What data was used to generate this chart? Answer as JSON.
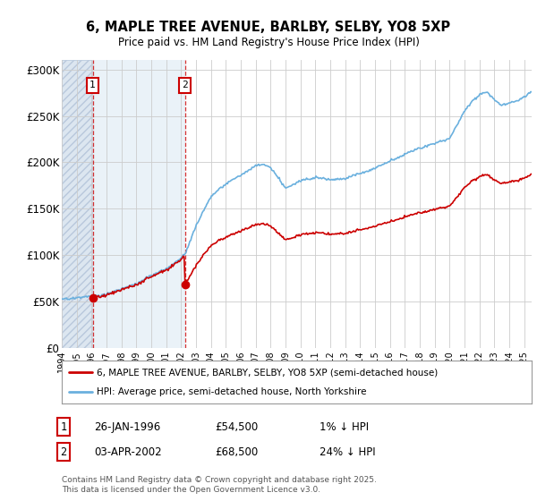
{
  "title1": "6, MAPLE TREE AVENUE, BARLBY, SELBY, YO8 5XP",
  "title2": "Price paid vs. HM Land Registry's House Price Index (HPI)",
  "ylabel_ticks": [
    "£0",
    "£50K",
    "£100K",
    "£150K",
    "£200K",
    "£250K",
    "£300K"
  ],
  "ytick_vals": [
    0,
    50000,
    100000,
    150000,
    200000,
    250000,
    300000
  ],
  "ylim": [
    0,
    310000
  ],
  "xlim_start": 1994.0,
  "xlim_end": 2025.5,
  "sale1_date": 1996.07,
  "sale1_price": 54500,
  "sale1_label": "1",
  "sale2_date": 2002.25,
  "sale2_price": 68500,
  "sale2_label": "2",
  "legend_line1": "6, MAPLE TREE AVENUE, BARLBY, SELBY, YO8 5XP (semi-detached house)",
  "legend_line2": "HPI: Average price, semi-detached house, North Yorkshire",
  "table_row1": [
    "1",
    "26-JAN-1996",
    "£54,500",
    "1% ↓ HPI"
  ],
  "table_row2": [
    "2",
    "03-APR-2002",
    "£68,500",
    "24% ↓ HPI"
  ],
  "footer": "Contains HM Land Registry data © Crown copyright and database right 2025.\nThis data is licensed under the Open Government Licence v3.0.",
  "hpi_color": "#6ab0de",
  "price_color": "#cc0000",
  "background_color": "#ffffff"
}
